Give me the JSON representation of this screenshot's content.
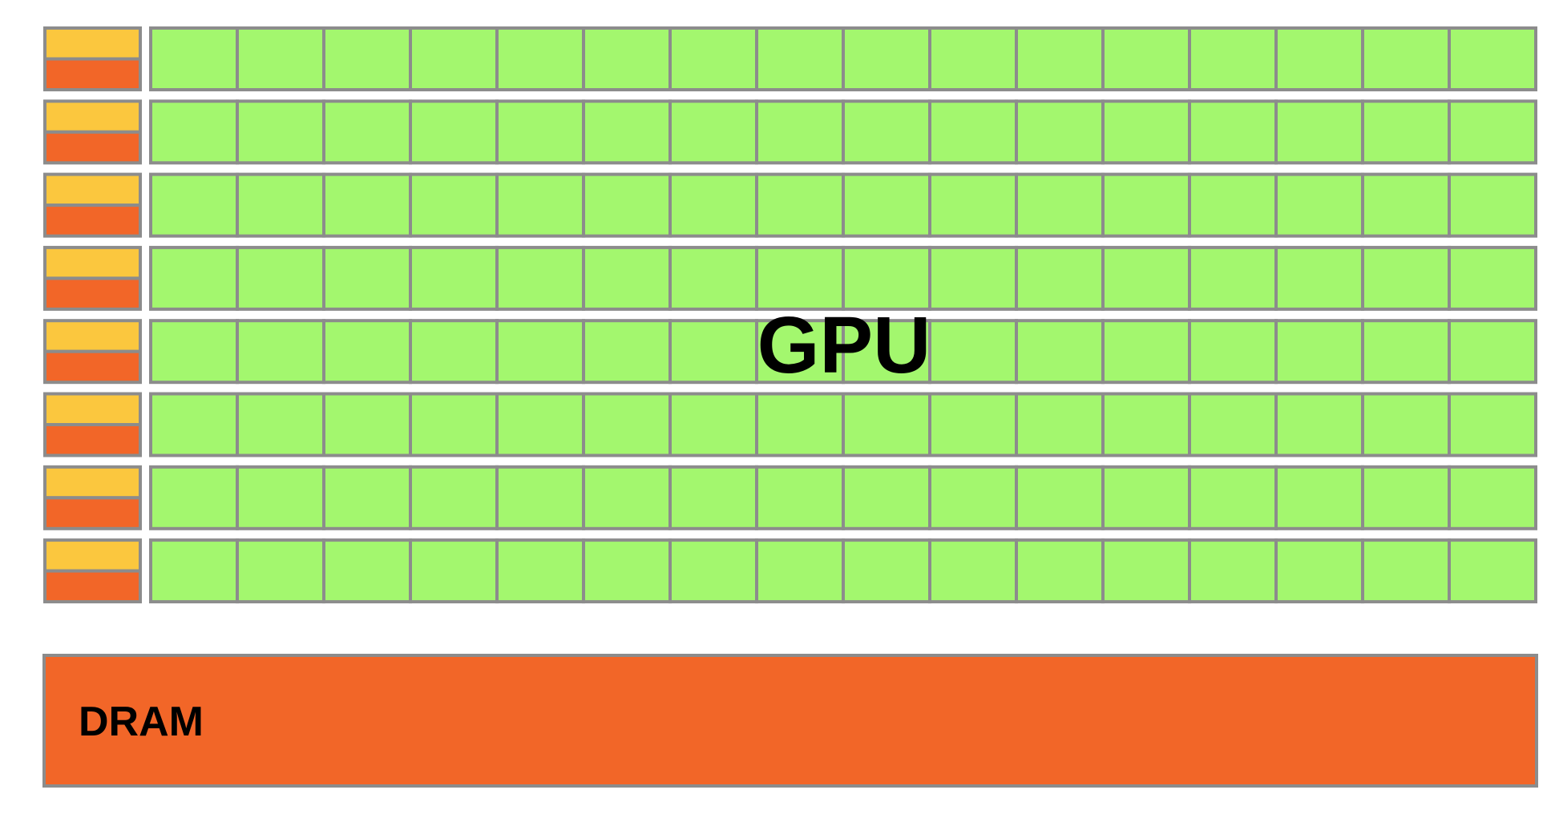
{
  "diagram": {
    "gpu_label": "GPU",
    "dram_label": "DRAM",
    "row_count": 8,
    "cores_per_row": 16,
    "colors": {
      "control": "#fbc73e",
      "cache": "#f26628",
      "core": "#a3f76e",
      "dram": "#f26628",
      "border": "#8c8c8c",
      "text": "#000000"
    }
  }
}
